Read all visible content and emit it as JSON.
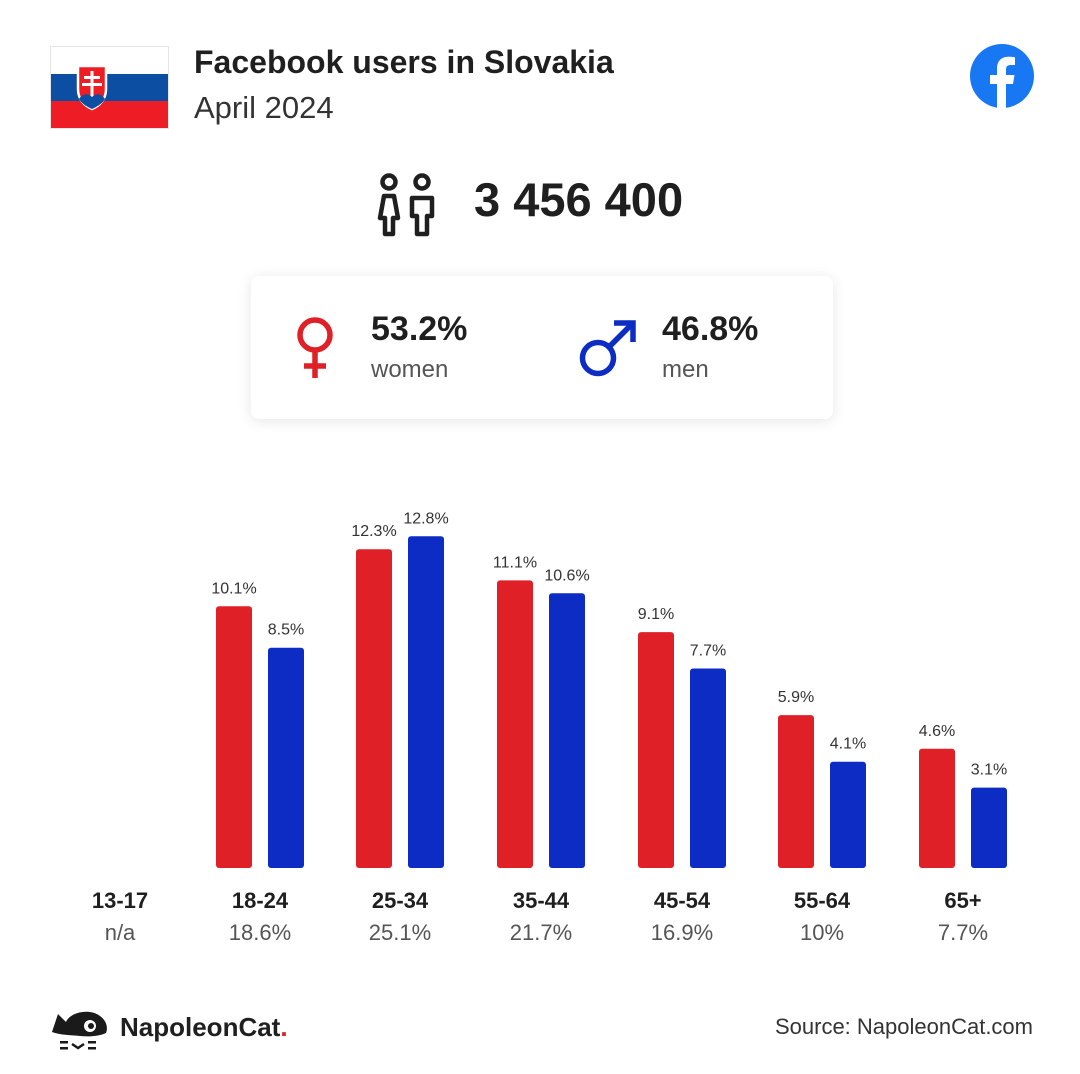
{
  "header": {
    "title": "Facebook users in Slovakia",
    "subtitle": "April 2024"
  },
  "total_users": "3 456 400",
  "gender": {
    "women_pct": "53.2%",
    "women_label": "women",
    "men_pct": "46.8%",
    "men_label": "men"
  },
  "colors": {
    "women": "#df2027",
    "men": "#0c2cc4",
    "facebook": "#1877f2"
  },
  "icons": {
    "flag": "slovakia-flag-icon",
    "facebook": "facebook-logo-icon",
    "users": "users-icon",
    "female": "female-symbol-icon",
    "male": "male-symbol-icon",
    "brand": "napoleoncat-logo-icon"
  },
  "chart_data": {
    "type": "bar",
    "categories": [
      "13-17",
      "18-24",
      "25-34",
      "35-44",
      "45-54",
      "55-64",
      "65+"
    ],
    "category_totals": [
      "n/a",
      "18.6%",
      "25.1%",
      "21.7%",
      "16.9%",
      "10%",
      "7.7%"
    ],
    "series": [
      {
        "name": "women",
        "values": [
          null,
          10.1,
          12.3,
          11.1,
          9.1,
          5.9,
          4.6
        ],
        "labels": [
          "",
          "10.1%",
          "12.3%",
          "11.1%",
          "9.1%",
          "5.9%",
          "4.6%"
        ]
      },
      {
        "name": "men",
        "values": [
          null,
          8.5,
          12.8,
          10.6,
          7.7,
          4.1,
          3.1
        ],
        "labels": [
          "",
          "8.5%",
          "12.8%",
          "10.6%",
          "7.7%",
          "4.1%",
          "3.1%"
        ]
      }
    ],
    "ylim": [
      0,
      14.2
    ],
    "grid": false
  },
  "footer": {
    "brand_name": "NapoleonCat",
    "brand_dot": ".",
    "source": "Source: NapoleonCat.com"
  }
}
